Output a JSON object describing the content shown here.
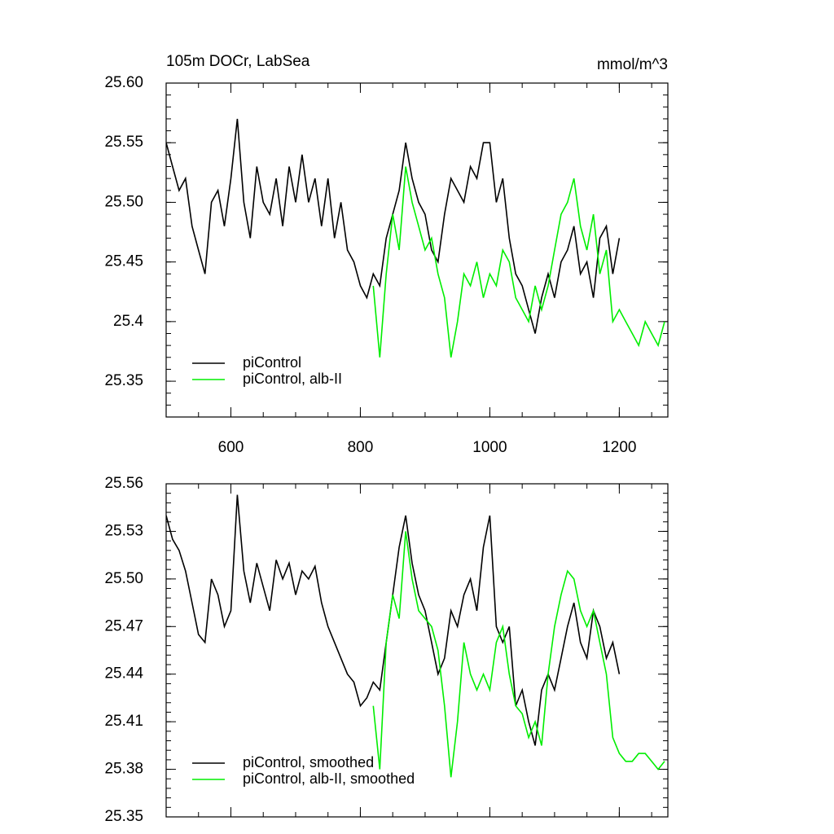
{
  "chart_data": [
    {
      "type": "line",
      "title": "105m DOCr, LabSea",
      "units": "mmol/m^3",
      "xlim": [
        500,
        1275
      ],
      "xticks": [
        600,
        800,
        1000,
        1200
      ],
      "xtick_labels": true,
      "ylim": [
        25.32,
        25.6
      ],
      "yticks": [
        25.35,
        25.4,
        25.45,
        {
          "value": 25.5,
          "label": "25.50"
        },
        25.55,
        {
          "value": 25.6,
          "label": "25.60"
        }
      ],
      "legend": "lower left",
      "series": [
        {
          "name": "piControl",
          "color": "#000000",
          "x": [
            500,
            510,
            520,
            530,
            540,
            550,
            560,
            570,
            580,
            590,
            600,
            610,
            620,
            630,
            640,
            650,
            660,
            670,
            680,
            690,
            700,
            710,
            720,
            730,
            740,
            750,
            760,
            770,
            780,
            790,
            800,
            810,
            820,
            830,
            840,
            850,
            860,
            870,
            880,
            890,
            900,
            910,
            920,
            930,
            940,
            950,
            960,
            970,
            980,
            990,
            1000,
            1010,
            1020,
            1030,
            1040,
            1050,
            1060,
            1070,
            1080,
            1090,
            1100,
            1110,
            1120,
            1130,
            1140,
            1150,
            1160,
            1170,
            1180,
            1190,
            1200
          ],
          "values": [
            25.55,
            25.53,
            25.51,
            25.52,
            25.48,
            25.46,
            25.44,
            25.5,
            25.51,
            25.48,
            25.52,
            25.57,
            25.5,
            25.47,
            25.53,
            25.5,
            25.49,
            25.52,
            25.48,
            25.53,
            25.5,
            25.54,
            25.5,
            25.52,
            25.48,
            25.52,
            25.47,
            25.5,
            25.46,
            25.45,
            25.43,
            25.42,
            25.44,
            25.43,
            25.47,
            25.49,
            25.51,
            25.55,
            25.52,
            25.5,
            25.49,
            25.46,
            25.45,
            25.49,
            25.52,
            25.51,
            25.5,
            25.53,
            25.52,
            25.55,
            25.55,
            25.5,
            25.52,
            25.47,
            25.44,
            25.43,
            25.41,
            25.39,
            25.42,
            25.44,
            25.42,
            25.45,
            25.46,
            25.48,
            25.44,
            25.45,
            25.42,
            25.47,
            25.48,
            25.44,
            25.47
          ]
        },
        {
          "name": "piControl, alb-II",
          "color": "#00ee00",
          "x": [
            820,
            830,
            840,
            850,
            860,
            870,
            880,
            890,
            900,
            910,
            920,
            930,
            940,
            950,
            960,
            970,
            980,
            990,
            1000,
            1010,
            1020,
            1030,
            1040,
            1050,
            1060,
            1070,
            1080,
            1090,
            1100,
            1110,
            1120,
            1130,
            1140,
            1150,
            1160,
            1170,
            1180,
            1190,
            1200,
            1210,
            1220,
            1230,
            1240,
            1250,
            1260,
            1270
          ],
          "values": [
            25.43,
            25.37,
            25.44,
            25.49,
            25.46,
            25.53,
            25.5,
            25.48,
            25.46,
            25.47,
            25.44,
            25.42,
            25.37,
            25.4,
            25.44,
            25.43,
            25.45,
            25.42,
            25.44,
            25.43,
            25.46,
            25.45,
            25.42,
            25.41,
            25.4,
            25.43,
            25.41,
            25.43,
            25.46,
            25.49,
            25.5,
            25.52,
            25.48,
            25.46,
            25.49,
            25.44,
            25.46,
            25.4,
            25.41,
            25.4,
            25.39,
            25.38,
            25.4,
            25.39,
            25.38,
            25.4
          ]
        }
      ]
    },
    {
      "type": "line",
      "xlim": [
        500,
        1275
      ],
      "xticks": [
        600,
        800,
        1000,
        1200
      ],
      "xtick_labels": false,
      "ylim": [
        25.35,
        25.56
      ],
      "yticks": [
        25.35,
        25.38,
        25.41,
        25.44,
        25.47,
        {
          "value": 25.5,
          "label": "25.50"
        },
        25.53,
        25.56
      ],
      "legend": "lower left",
      "series": [
        {
          "name": "piControl, smoothed",
          "color": "#000000",
          "x": [
            500,
            510,
            520,
            530,
            540,
            550,
            560,
            570,
            580,
            590,
            600,
            610,
            620,
            630,
            640,
            650,
            660,
            670,
            680,
            690,
            700,
            710,
            720,
            730,
            740,
            750,
            760,
            770,
            780,
            790,
            800,
            810,
            820,
            830,
            840,
            850,
            860,
            870,
            880,
            890,
            900,
            910,
            920,
            930,
            940,
            950,
            960,
            970,
            980,
            990,
            1000,
            1010,
            1020,
            1030,
            1040,
            1050,
            1060,
            1070,
            1080,
            1090,
            1100,
            1110,
            1120,
            1130,
            1140,
            1150,
            1160,
            1170,
            1180,
            1190,
            1200
          ],
          "values": [
            25.54,
            25.525,
            25.518,
            25.505,
            25.485,
            25.465,
            25.46,
            25.5,
            25.49,
            25.47,
            25.48,
            25.553,
            25.505,
            25.485,
            25.51,
            25.495,
            25.48,
            25.512,
            25.5,
            25.51,
            25.49,
            25.505,
            25.5,
            25.508,
            25.485,
            25.47,
            25.46,
            25.45,
            25.44,
            25.435,
            25.42,
            25.425,
            25.435,
            25.43,
            25.46,
            25.49,
            25.52,
            25.54,
            25.51,
            25.49,
            25.48,
            25.46,
            25.44,
            25.45,
            25.48,
            25.47,
            25.49,
            25.5,
            25.48,
            25.52,
            25.54,
            25.47,
            25.46,
            25.47,
            25.42,
            25.43,
            25.41,
            25.395,
            25.43,
            25.44,
            25.43,
            25.45,
            25.47,
            25.485,
            25.46,
            25.45,
            25.48,
            25.47,
            25.45,
            25.46,
            25.44
          ]
        },
        {
          "name": "piControl, alb-II, smoothed",
          "color": "#00ee00",
          "x": [
            820,
            830,
            840,
            850,
            860,
            870,
            880,
            890,
            900,
            910,
            920,
            930,
            940,
            950,
            960,
            970,
            980,
            990,
            1000,
            1010,
            1020,
            1030,
            1040,
            1050,
            1060,
            1070,
            1080,
            1090,
            1100,
            1110,
            1120,
            1130,
            1140,
            1150,
            1160,
            1170,
            1180,
            1190,
            1200,
            1210,
            1220,
            1230,
            1240,
            1250,
            1260,
            1270
          ],
          "values": [
            25.42,
            25.38,
            25.46,
            25.49,
            25.475,
            25.53,
            25.5,
            25.48,
            25.475,
            25.47,
            25.455,
            25.42,
            25.375,
            25.41,
            25.46,
            25.44,
            25.43,
            25.44,
            25.43,
            25.46,
            25.47,
            25.44,
            25.42,
            25.415,
            25.4,
            25.41,
            25.395,
            25.44,
            25.47,
            25.49,
            25.505,
            25.5,
            25.48,
            25.47,
            25.48,
            25.46,
            25.44,
            25.4,
            25.39,
            25.385,
            25.385,
            25.39,
            25.39,
            25.385,
            25.38,
            25.385
          ]
        }
      ]
    }
  ]
}
